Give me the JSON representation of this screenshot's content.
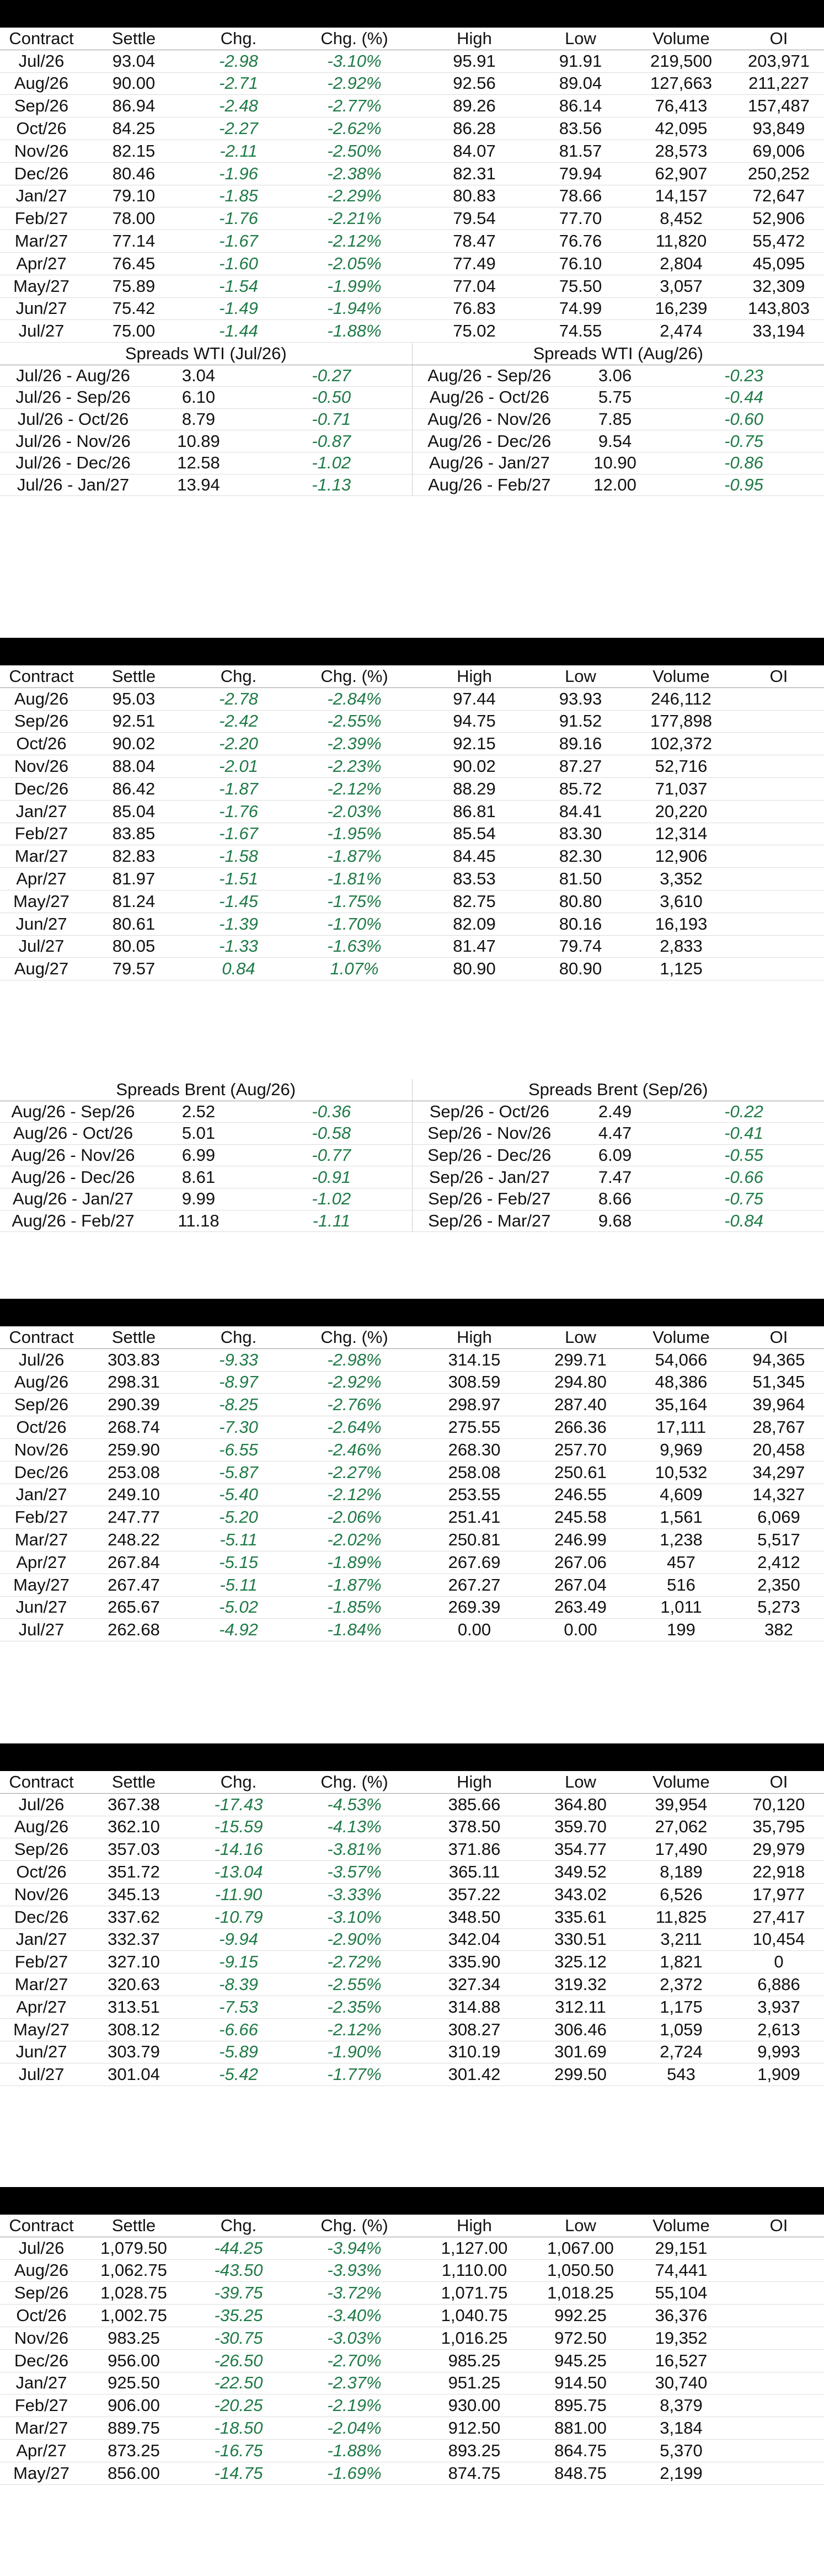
{
  "colors": {
    "header_bar": "#000000",
    "change": "#1e7a46",
    "text": "#111111"
  },
  "columns": [
    "Contract",
    "Settle",
    "Chg.",
    "Chg. (%)",
    "High",
    "Low",
    "Volume",
    "OI"
  ],
  "wti": {
    "rows": [
      [
        "Jul/26",
        "93.04",
        "-2.98",
        "-3.10%",
        "95.91",
        "91.91",
        "219,500",
        "203,971"
      ],
      [
        "Aug/26",
        "90.00",
        "-2.71",
        "-2.92%",
        "92.56",
        "89.04",
        "127,663",
        "211,227"
      ],
      [
        "Sep/26",
        "86.94",
        "-2.48",
        "-2.77%",
        "89.26",
        "86.14",
        "76,413",
        "157,487"
      ],
      [
        "Oct/26",
        "84.25",
        "-2.27",
        "-2.62%",
        "86.28",
        "83.56",
        "42,095",
        "93,849"
      ],
      [
        "Nov/26",
        "82.15",
        "-2.11",
        "-2.50%",
        "84.07",
        "81.57",
        "28,573",
        "69,006"
      ],
      [
        "Dec/26",
        "80.46",
        "-1.96",
        "-2.38%",
        "82.31",
        "79.94",
        "62,907",
        "250,252"
      ],
      [
        "Jan/27",
        "79.10",
        "-1.85",
        "-2.29%",
        "80.83",
        "78.66",
        "14,157",
        "72,647"
      ],
      [
        "Feb/27",
        "78.00",
        "-1.76",
        "-2.21%",
        "79.54",
        "77.70",
        "8,452",
        "52,906"
      ],
      [
        "Mar/27",
        "77.14",
        "-1.67",
        "-2.12%",
        "78.47",
        "76.76",
        "11,820",
        "55,472"
      ],
      [
        "Apr/27",
        "76.45",
        "-1.60",
        "-2.05%",
        "77.49",
        "76.10",
        "2,804",
        "45,095"
      ],
      [
        "May/27",
        "75.89",
        "-1.54",
        "-1.99%",
        "77.04",
        "75.50",
        "3,057",
        "32,309"
      ],
      [
        "Jun/27",
        "75.42",
        "-1.49",
        "-1.94%",
        "76.83",
        "74.99",
        "16,239",
        "143,803"
      ],
      [
        "Jul/27",
        "75.00",
        "-1.44",
        "-1.88%",
        "75.02",
        "74.55",
        "2,474",
        "33,194"
      ]
    ],
    "spreads_left_title": "Spreads WTI (Jul/26)",
    "spreads_right_title": "Spreads WTI (Aug/26)",
    "spreads_left": [
      [
        "Jul/26 - Aug/26",
        "3.04",
        "-0.27"
      ],
      [
        "Jul/26 - Sep/26",
        "6.10",
        "-0.50"
      ],
      [
        "Jul/26 - Oct/26",
        "8.79",
        "-0.71"
      ],
      [
        "Jul/26 - Nov/26",
        "10.89",
        "-0.87"
      ],
      [
        "Jul/26 - Dec/26",
        "12.58",
        "-1.02"
      ],
      [
        "Jul/26 - Jan/27",
        "13.94",
        "-1.13"
      ]
    ],
    "spreads_right": [
      [
        "Aug/26 - Sep/26",
        "3.06",
        "-0.23"
      ],
      [
        "Aug/26 - Oct/26",
        "5.75",
        "-0.44"
      ],
      [
        "Aug/26 - Nov/26",
        "7.85",
        "-0.60"
      ],
      [
        "Aug/26 - Dec/26",
        "9.54",
        "-0.75"
      ],
      [
        "Aug/26 - Jan/27",
        "10.90",
        "-0.86"
      ],
      [
        "Aug/26 - Feb/27",
        "12.00",
        "-0.95"
      ]
    ]
  },
  "brent": {
    "rows": [
      [
        "Aug/26",
        "95.03",
        "-2.78",
        "-2.84%",
        "97.44",
        "93.93",
        "246,112",
        ""
      ],
      [
        "Sep/26",
        "92.51",
        "-2.42",
        "-2.55%",
        "94.75",
        "91.52",
        "177,898",
        ""
      ],
      [
        "Oct/26",
        "90.02",
        "-2.20",
        "-2.39%",
        "92.15",
        "89.16",
        "102,372",
        ""
      ],
      [
        "Nov/26",
        "88.04",
        "-2.01",
        "-2.23%",
        "90.02",
        "87.27",
        "52,716",
        ""
      ],
      [
        "Dec/26",
        "86.42",
        "-1.87",
        "-2.12%",
        "88.29",
        "85.72",
        "71,037",
        ""
      ],
      [
        "Jan/27",
        "85.04",
        "-1.76",
        "-2.03%",
        "86.81",
        "84.41",
        "20,220",
        ""
      ],
      [
        "Feb/27",
        "83.85",
        "-1.67",
        "-1.95%",
        "85.54",
        "83.30",
        "12,314",
        ""
      ],
      [
        "Mar/27",
        "82.83",
        "-1.58",
        "-1.87%",
        "84.45",
        "82.30",
        "12,906",
        ""
      ],
      [
        "Apr/27",
        "81.97",
        "-1.51",
        "-1.81%",
        "83.53",
        "81.50",
        "3,352",
        ""
      ],
      [
        "May/27",
        "81.24",
        "-1.45",
        "-1.75%",
        "82.75",
        "80.80",
        "3,610",
        ""
      ],
      [
        "Jun/27",
        "80.61",
        "-1.39",
        "-1.70%",
        "82.09",
        "80.16",
        "16,193",
        ""
      ],
      [
        "Jul/27",
        "80.05",
        "-1.33",
        "-1.63%",
        "81.47",
        "79.74",
        "2,833",
        ""
      ],
      [
        "Aug/27",
        "79.57",
        "0.84",
        "1.07%",
        "80.90",
        "80.90",
        "1,125",
        ""
      ]
    ],
    "spreads_left_title": "Spreads Brent (Aug/26)",
    "spreads_right_title": "Spreads Brent (Sep/26)",
    "spreads_left": [
      [
        "Aug/26 - Sep/26",
        "2.52",
        "-0.36"
      ],
      [
        "Aug/26 - Oct/26",
        "5.01",
        "-0.58"
      ],
      [
        "Aug/26 - Nov/26",
        "6.99",
        "-0.77"
      ],
      [
        "Aug/26 - Dec/26",
        "8.61",
        "-0.91"
      ],
      [
        "Aug/26 - Jan/27",
        "9.99",
        "-1.02"
      ],
      [
        "Aug/26 - Feb/27",
        "11.18",
        "-1.11"
      ]
    ],
    "spreads_right": [
      [
        "Sep/26 - Oct/26",
        "2.49",
        "-0.22"
      ],
      [
        "Sep/26 - Nov/26",
        "4.47",
        "-0.41"
      ],
      [
        "Sep/26 - Dec/26",
        "6.09",
        "-0.55"
      ],
      [
        "Sep/26 - Jan/27",
        "7.47",
        "-0.66"
      ],
      [
        "Sep/26 - Feb/27",
        "8.66",
        "-0.75"
      ],
      [
        "Sep/26 - Mar/27",
        "9.68",
        "-0.84"
      ]
    ]
  },
  "table3": {
    "rows": [
      [
        "Jul/26",
        "303.83",
        "-9.33",
        "-2.98%",
        "314.15",
        "299.71",
        "54,066",
        "94,365"
      ],
      [
        "Aug/26",
        "298.31",
        "-8.97",
        "-2.92%",
        "308.59",
        "294.80",
        "48,386",
        "51,345"
      ],
      [
        "Sep/26",
        "290.39",
        "-8.25",
        "-2.76%",
        "298.97",
        "287.40",
        "35,164",
        "39,964"
      ],
      [
        "Oct/26",
        "268.74",
        "-7.30",
        "-2.64%",
        "275.55",
        "266.36",
        "17,111",
        "28,767"
      ],
      [
        "Nov/26",
        "259.90",
        "-6.55",
        "-2.46%",
        "268.30",
        "257.70",
        "9,969",
        "20,458"
      ],
      [
        "Dec/26",
        "253.08",
        "-5.87",
        "-2.27%",
        "258.08",
        "250.61",
        "10,532",
        "34,297"
      ],
      [
        "Jan/27",
        "249.10",
        "-5.40",
        "-2.12%",
        "253.55",
        "246.55",
        "4,609",
        "14,327"
      ],
      [
        "Feb/27",
        "247.77",
        "-5.20",
        "-2.06%",
        "251.41",
        "245.58",
        "1,561",
        "6,069"
      ],
      [
        "Mar/27",
        "248.22",
        "-5.11",
        "-2.02%",
        "250.81",
        "246.99",
        "1,238",
        "5,517"
      ],
      [
        "Apr/27",
        "267.84",
        "-5.15",
        "-1.89%",
        "267.69",
        "267.06",
        "457",
        "2,412"
      ],
      [
        "May/27",
        "267.47",
        "-5.11",
        "-1.87%",
        "267.27",
        "267.04",
        "516",
        "2,350"
      ],
      [
        "Jun/27",
        "265.67",
        "-5.02",
        "-1.85%",
        "269.39",
        "263.49",
        "1,011",
        "5,273"
      ],
      [
        "Jul/27",
        "262.68",
        "-4.92",
        "-1.84%",
        "0.00",
        "0.00",
        "199",
        "382"
      ]
    ]
  },
  "table4": {
    "rows": [
      [
        "Jul/26",
        "367.38",
        "-17.43",
        "-4.53%",
        "385.66",
        "364.80",
        "39,954",
        "70,120"
      ],
      [
        "Aug/26",
        "362.10",
        "-15.59",
        "-4.13%",
        "378.50",
        "359.70",
        "27,062",
        "35,795"
      ],
      [
        "Sep/26",
        "357.03",
        "-14.16",
        "-3.81%",
        "371.86",
        "354.77",
        "17,490",
        "29,979"
      ],
      [
        "Oct/26",
        "351.72",
        "-13.04",
        "-3.57%",
        "365.11",
        "349.52",
        "8,189",
        "22,918"
      ],
      [
        "Nov/26",
        "345.13",
        "-11.90",
        "-3.33%",
        "357.22",
        "343.02",
        "6,526",
        "17,977"
      ],
      [
        "Dec/26",
        "337.62",
        "-10.79",
        "-3.10%",
        "348.50",
        "335.61",
        "11,825",
        "27,417"
      ],
      [
        "Jan/27",
        "332.37",
        "-9.94",
        "-2.90%",
        "342.04",
        "330.51",
        "3,211",
        "10,454"
      ],
      [
        "Feb/27",
        "327.10",
        "-9.15",
        "-2.72%",
        "335.90",
        "325.12",
        "1,821",
        "0"
      ],
      [
        "Mar/27",
        "320.63",
        "-8.39",
        "-2.55%",
        "327.34",
        "319.32",
        "2,372",
        "6,886"
      ],
      [
        "Apr/27",
        "313.51",
        "-7.53",
        "-2.35%",
        "314.88",
        "312.11",
        "1,175",
        "3,937"
      ],
      [
        "May/27",
        "308.12",
        "-6.66",
        "-2.12%",
        "308.27",
        "306.46",
        "1,059",
        "2,613"
      ],
      [
        "Jun/27",
        "303.79",
        "-5.89",
        "-1.90%",
        "310.19",
        "301.69",
        "2,724",
        "9,993"
      ],
      [
        "Jul/27",
        "301.04",
        "-5.42",
        "-1.77%",
        "301.42",
        "299.50",
        "543",
        "1,909"
      ]
    ]
  },
  "table5": {
    "rows": [
      [
        "Jul/26",
        "1,079.50",
        "-44.25",
        "-3.94%",
        "1,127.00",
        "1,067.00",
        "29,151",
        ""
      ],
      [
        "Aug/26",
        "1,062.75",
        "-43.50",
        "-3.93%",
        "1,110.00",
        "1,050.50",
        "74,441",
        ""
      ],
      [
        "Sep/26",
        "1,028.75",
        "-39.75",
        "-3.72%",
        "1,071.75",
        "1,018.25",
        "55,104",
        ""
      ],
      [
        "Oct/26",
        "1,002.75",
        "-35.25",
        "-3.40%",
        "1,040.75",
        "992.25",
        "36,376",
        ""
      ],
      [
        "Nov/26",
        "983.25",
        "-30.75",
        "-3.03%",
        "1,016.25",
        "972.50",
        "19,352",
        ""
      ],
      [
        "Dec/26",
        "956.00",
        "-26.50",
        "-2.70%",
        "985.25",
        "945.25",
        "16,527",
        ""
      ],
      [
        "Jan/27",
        "925.50",
        "-22.50",
        "-2.37%",
        "951.25",
        "914.50",
        "30,740",
        ""
      ],
      [
        "Feb/27",
        "906.00",
        "-20.25",
        "-2.19%",
        "930.00",
        "895.75",
        "8,379",
        ""
      ],
      [
        "Mar/27",
        "889.75",
        "-18.50",
        "-2.04%",
        "912.50",
        "881.00",
        "3,184",
        ""
      ],
      [
        "Apr/27",
        "873.25",
        "-16.75",
        "-1.88%",
        "893.25",
        "864.75",
        "5,370",
        ""
      ],
      [
        "May/27",
        "856.00",
        "-14.75",
        "-1.69%",
        "874.75",
        "848.75",
        "2,199",
        ""
      ]
    ]
  }
}
